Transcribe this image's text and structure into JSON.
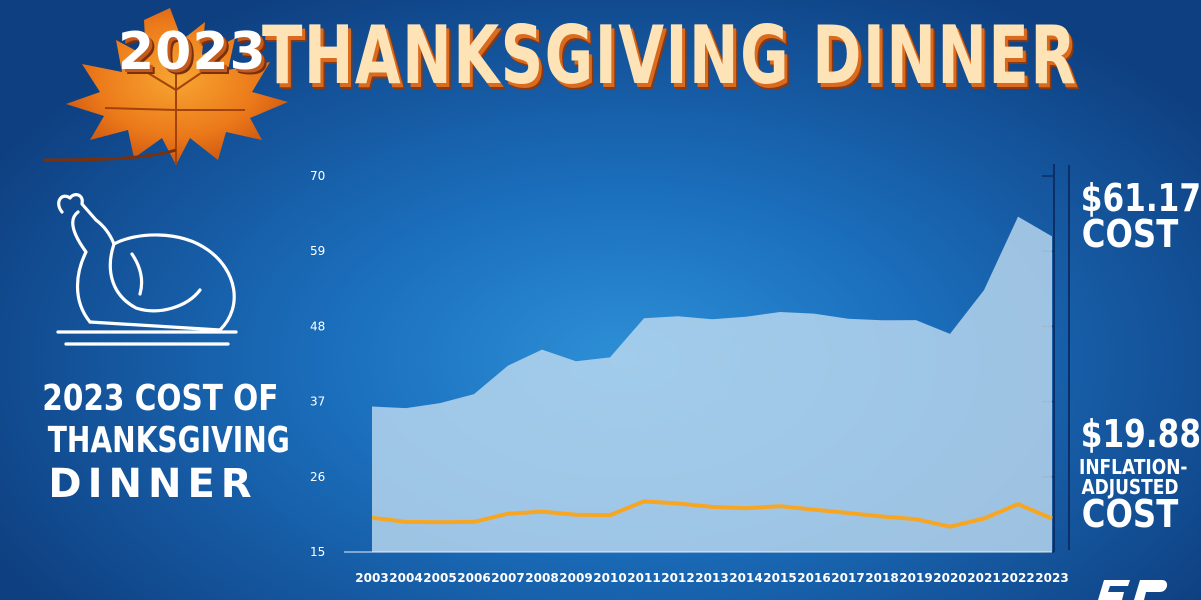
{
  "header": {
    "year": "2023",
    "title": "THANKSGIVING DINNER"
  },
  "left": {
    "line1": "2023 COST OF",
    "line2": "THANKSGIVING",
    "line3": "DINNER"
  },
  "right": {
    "cost_value": "$61.17",
    "cost_label": "COST",
    "inflation_value": "$19.88",
    "inflation_label_1": "INFLATION-",
    "inflation_label_2": "ADJUSTED",
    "inflation_label_3": "COST"
  },
  "colors": {
    "area_fill": "#bcd9ef",
    "line": "#f6a623",
    "title": "#fde3b6",
    "title_shadow": "#d96a1e"
  },
  "icons": {
    "leaf": "maple-leaf-icon",
    "turkey": "roast-turkey-icon",
    "logo": "brand-logo-icon"
  },
  "chart_data": {
    "type": "area",
    "x": [
      "2003",
      "2004",
      "2005",
      "2006",
      "2007",
      "2008",
      "2009",
      "2010",
      "2011",
      "2012",
      "2013",
      "2014",
      "2015",
      "2016",
      "2017",
      "2018",
      "2019",
      "2020",
      "2021",
      "2022",
      "2023"
    ],
    "series": [
      {
        "values": [
          36.28,
          36.05,
          36.78,
          38.1,
          42.26,
          44.61,
          42.91,
          43.47,
          49.2,
          49.48,
          49.04,
          49.41,
          50.11,
          49.87,
          49.12,
          48.9,
          48.91,
          46.9,
          53.31,
          64.05,
          61.17
        ]
      },
      {
        "values": [
          20.0,
          19.4,
          19.35,
          19.4,
          20.6,
          20.9,
          20.45,
          20.4,
          22.4,
          22.1,
          21.6,
          21.4,
          21.7,
          21.2,
          20.7,
          20.2,
          19.8,
          18.7,
          19.9,
          22.0,
          19.88
        ]
      }
    ],
    "y_ticks": [
      15,
      26,
      37,
      48,
      59,
      70
    ],
    "ylim": [
      15,
      70
    ],
    "grid": false
  }
}
